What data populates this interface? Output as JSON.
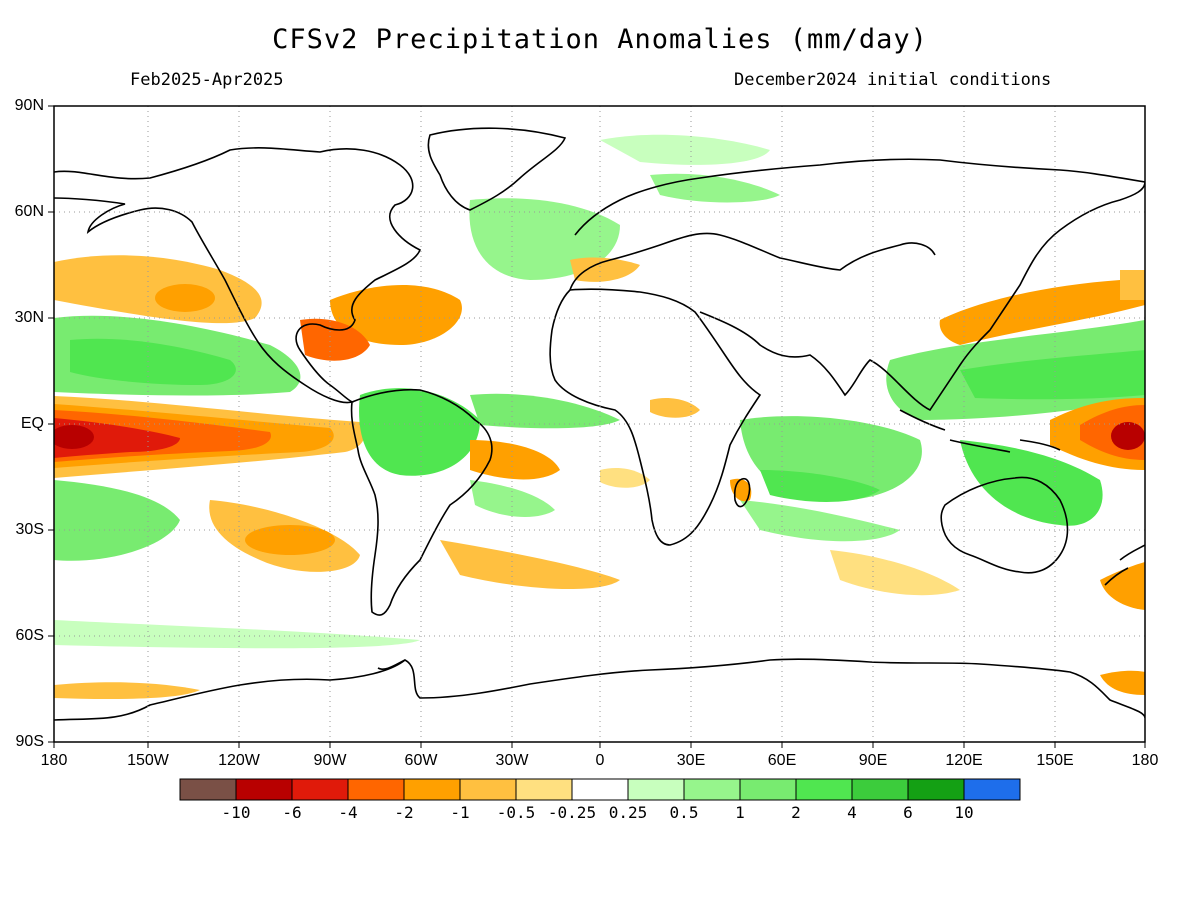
{
  "header": {
    "title": "CFSv2 Precipitation Anomalies (mm/day)",
    "period": "Feb2025-Apr2025",
    "init": "December2024 initial conditions"
  },
  "axes": {
    "lat_labels": [
      "90N",
      "60N",
      "30N",
      "EQ",
      "30S",
      "60S",
      "90S"
    ],
    "lon_labels": [
      "180",
      "150W",
      "120W",
      "90W",
      "60W",
      "30W",
      "0",
      "30E",
      "60E",
      "90E",
      "120E",
      "150E",
      "180"
    ],
    "lon_range": [
      -180,
      180
    ],
    "lat_range": [
      -90,
      90
    ],
    "grid": "dotted every 30 degrees"
  },
  "colorbar": {
    "labels": [
      "-10",
      "-6",
      "-4",
      "-2",
      "-1",
      "-0.5",
      "-0.25",
      "0.25",
      "0.5",
      "1",
      "2",
      "4",
      "6",
      "10"
    ],
    "colors": [
      "#7a5046",
      "#b80000",
      "#e01a0a",
      "#ff6600",
      "#ffa000",
      "#ffc040",
      "#ffe080",
      "#ffffff",
      "#c8ffbe",
      "#96f58c",
      "#78eb70",
      "#50e650",
      "#3ccc3c",
      "#14a014",
      "#1e6eeb"
    ]
  },
  "colors": {
    "coastline": "#000000",
    "grid": "#999999"
  }
}
